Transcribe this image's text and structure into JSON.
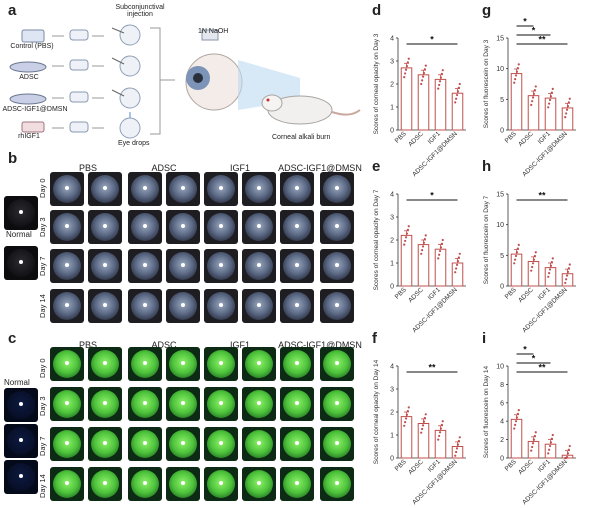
{
  "panels": {
    "a": "a",
    "b": "b",
    "c": "c",
    "d": "d",
    "e": "e",
    "f": "f",
    "g": "g",
    "h": "h",
    "i": "i"
  },
  "schematic": {
    "groups": [
      "Control (PBS)",
      "ADSC",
      "ADSC-IGF1@DMSN",
      "rhIGF1"
    ],
    "subconjunctival": "Subconjunctival injection",
    "eye_drops": "Eye drops",
    "naoh": "1N NaOH",
    "burn": "Corneal alkali burn"
  },
  "photo_grid": {
    "groups": [
      "PBS",
      "ADSC",
      "IGF1",
      "ADSC-IGF1@DMSN"
    ],
    "normal_label": "Normal",
    "days": [
      "Day 0",
      "Day 3",
      "Day 7",
      "Day 14"
    ]
  },
  "chart_data": [
    {
      "panel": "d",
      "type": "bar",
      "categories": [
        "PBS",
        "ADSC",
        "IGF1",
        "ADSC-IGF1@DMSN"
      ],
      "values": [
        2.7,
        2.4,
        2.2,
        1.6
      ],
      "ylabel": "Scores of corneal opacity on Day 3",
      "ylim": [
        0,
        4
      ],
      "yticks": [
        0,
        1,
        2,
        3,
        4
      ],
      "sig": [
        {
          "from": 0,
          "to": 3,
          "label": "*"
        }
      ],
      "color": "#c0504d"
    },
    {
      "panel": "e",
      "type": "bar",
      "categories": [
        "PBS",
        "ADSC",
        "IGF1",
        "ADSC-IGF1@DMSN"
      ],
      "values": [
        2.2,
        1.8,
        1.6,
        1.0
      ],
      "ylabel": "Scores of corneal opacity on Day 7",
      "ylim": [
        0,
        4
      ],
      "yticks": [
        0,
        1,
        2,
        3,
        4
      ],
      "sig": [
        {
          "from": 0,
          "to": 3,
          "label": "*"
        }
      ],
      "color": "#c0504d"
    },
    {
      "panel": "f",
      "type": "bar",
      "categories": [
        "PBS",
        "ADSC",
        "IGF1",
        "ADSC-IGF1@DMSN"
      ],
      "values": [
        1.8,
        1.5,
        1.2,
        0.5
      ],
      "ylabel": "Scores of corneal opacity on Day 14",
      "ylim": [
        0,
        4
      ],
      "yticks": [
        0,
        1,
        2,
        3,
        4
      ],
      "sig": [
        {
          "from": 0,
          "to": 3,
          "label": "**"
        }
      ],
      "color": "#c0504d"
    },
    {
      "panel": "g",
      "type": "bar",
      "categories": [
        "PBS",
        "ADSC",
        "IGF1",
        "ADSC-IGF1@DMSN"
      ],
      "values": [
        9.2,
        5.6,
        5.2,
        3.6
      ],
      "ylabel": "Scores of fluorescein on Day 3",
      "ylim": [
        0,
        15
      ],
      "yticks": [
        0,
        5,
        10,
        15
      ],
      "sig": [
        {
          "from": 0,
          "to": 1,
          "label": "*"
        },
        {
          "from": 0,
          "to": 2,
          "label": "*"
        },
        {
          "from": 0,
          "to": 3,
          "label": "**"
        }
      ],
      "color": "#c0504d"
    },
    {
      "panel": "h",
      "type": "bar",
      "categories": [
        "PBS",
        "ADSC",
        "IGF1",
        "ADSC-IGF1@DMSN"
      ],
      "values": [
        5.2,
        4.0,
        3.0,
        2.0
      ],
      "ylabel": "Scores of fluorescein on Day 7",
      "ylim": [
        0,
        15
      ],
      "yticks": [
        0,
        5,
        10,
        15
      ],
      "sig": [
        {
          "from": 0,
          "to": 3,
          "label": "**"
        }
      ],
      "color": "#c0504d"
    },
    {
      "panel": "i",
      "type": "bar",
      "categories": [
        "PBS",
        "ADSC",
        "IGF1",
        "ADSC-IGF1@DMSN"
      ],
      "values": [
        4.2,
        1.8,
        1.5,
        0.3
      ],
      "ylabel": "Scores of fluorescein on Day 14",
      "ylim": [
        0,
        10
      ],
      "yticks": [
        0,
        2,
        4,
        6,
        8,
        10
      ],
      "sig": [
        {
          "from": 0,
          "to": 1,
          "label": "*"
        },
        {
          "from": 0,
          "to": 2,
          "label": "*"
        },
        {
          "from": 0,
          "to": 3,
          "label": "**"
        }
      ],
      "color": "#c0504d"
    }
  ]
}
